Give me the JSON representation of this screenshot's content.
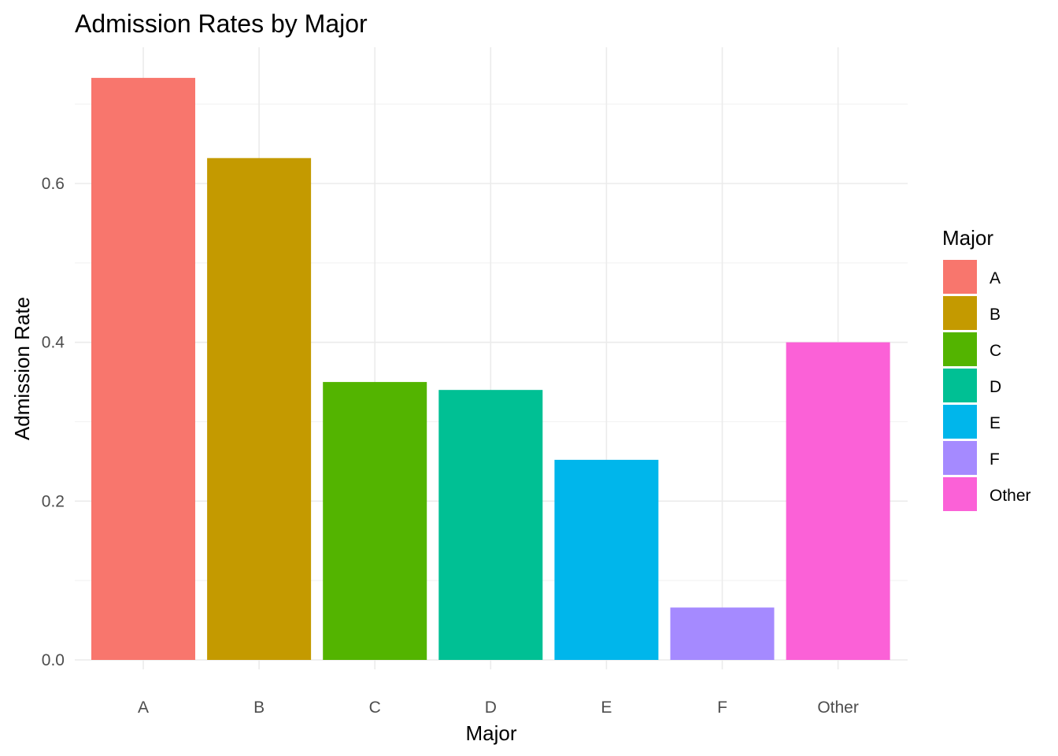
{
  "chart_data": {
    "type": "bar",
    "title": "Admission Rates by Major",
    "xlabel": "Major",
    "ylabel": "Admission Rate",
    "categories": [
      "A",
      "B",
      "C",
      "D",
      "E",
      "F",
      "Other"
    ],
    "values": [
      0.733,
      0.632,
      0.35,
      0.34,
      0.252,
      0.066,
      0.4
    ],
    "colors": [
      "#F8766D",
      "#C49A00",
      "#53B400",
      "#00C094",
      "#00B6EB",
      "#A58AFF",
      "#FB61D7"
    ],
    "y_ticks": [
      0.0,
      0.2,
      0.4,
      0.6
    ],
    "y_tick_labels": [
      "0.0",
      "0.2",
      "0.4",
      "0.6"
    ],
    "ylim": [
      0.0,
      0.77
    ],
    "grid": true,
    "legend": {
      "title": "Major",
      "position": "right",
      "entries": [
        "A",
        "B",
        "C",
        "D",
        "E",
        "F",
        "Other"
      ]
    }
  }
}
